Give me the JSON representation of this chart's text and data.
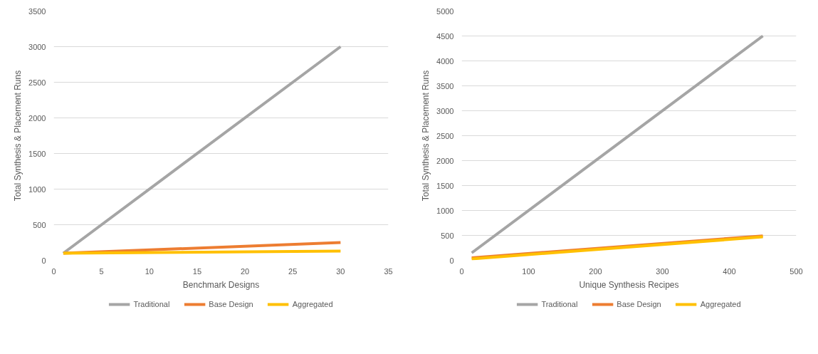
{
  "chart_data": [
    {
      "type": "line",
      "xlabel": "Benchmark Designs",
      "ylabel": "Total Synthesis & Placement Runs",
      "xlim": [
        0,
        35
      ],
      "xticks": [
        0,
        5,
        10,
        15,
        20,
        25,
        30,
        35
      ],
      "ylim": [
        0,
        3500
      ],
      "yticks": [
        0,
        500,
        1000,
        1500,
        2000,
        2500,
        3000,
        3500
      ],
      "grid": "y",
      "legend": "bottom",
      "marker": "none",
      "line_style": "solid",
      "series": [
        {
          "name": "Traditional",
          "color": "#a5a5a5",
          "x": [
            1,
            30
          ],
          "values": [
            100,
            3000
          ]
        },
        {
          "name": "Base Design",
          "color": "#ed7d31",
          "x": [
            1,
            30
          ],
          "values": [
            100,
            250
          ]
        },
        {
          "name": "Aggregated",
          "color": "#ffc000",
          "x": [
            1,
            30
          ],
          "values": [
            100,
            130
          ]
        }
      ]
    },
    {
      "type": "line",
      "xlabel": "Unique Synthesis Recipes",
      "ylabel": "Total Synthesis & Placement Runs",
      "xlim": [
        0,
        500
      ],
      "xticks": [
        0,
        100,
        200,
        300,
        400,
        500
      ],
      "ylim": [
        0,
        5000
      ],
      "yticks": [
        0,
        500,
        1000,
        1500,
        2000,
        2500,
        3000,
        3500,
        4000,
        4500,
        5000
      ],
      "grid": "y",
      "legend": "bottom",
      "marker": "none",
      "line_style": "solid",
      "series": [
        {
          "name": "Traditional",
          "color": "#a5a5a5",
          "x": [
            15,
            450
          ],
          "values": [
            150,
            4500
          ]
        },
        {
          "name": "Base Design",
          "color": "#ed7d31",
          "x": [
            15,
            450
          ],
          "values": [
            50,
            490
          ]
        },
        {
          "name": "Aggregated",
          "color": "#ffc000",
          "x": [
            15,
            450
          ],
          "values": [
            30,
            470
          ]
        }
      ]
    }
  ]
}
